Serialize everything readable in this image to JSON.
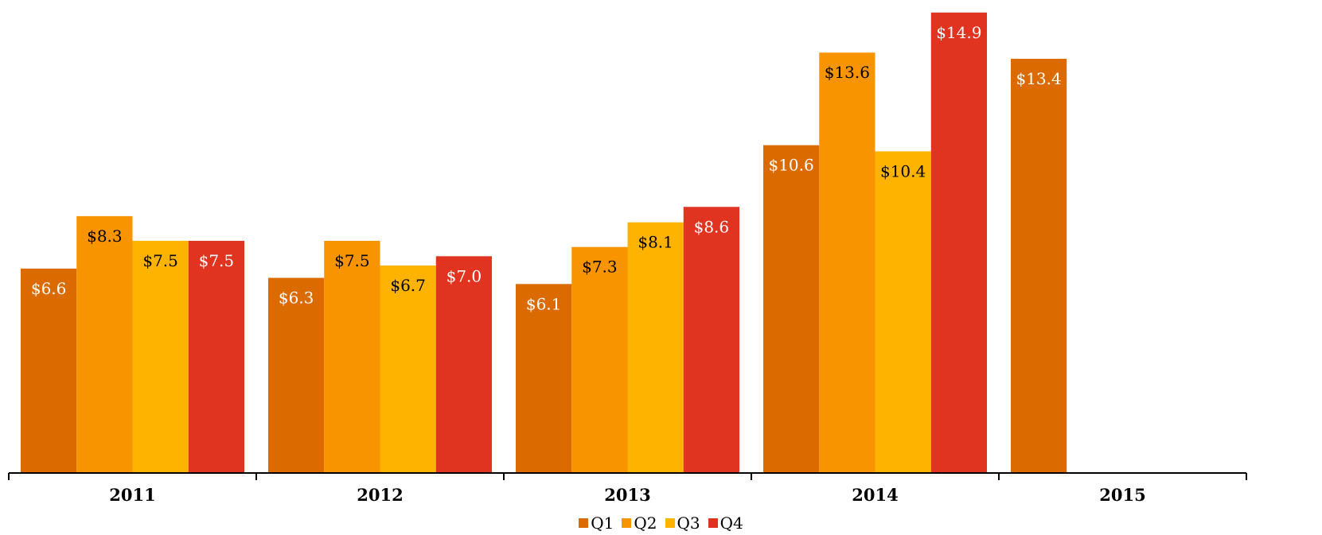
{
  "chart_data": {
    "type": "bar",
    "categories": [
      "2011",
      "2012",
      "2013",
      "2014",
      "2015"
    ],
    "series": [
      {
        "name": "Q1",
        "color": "#DB6B00",
        "values": [
          6.6,
          6.3,
          6.1,
          10.6,
          13.4
        ],
        "labels": [
          "$6.6",
          "$6.3",
          "$6.1",
          "$10.6",
          "$13.4"
        ],
        "label_color": "#FFFFFF"
      },
      {
        "name": "Q2",
        "color": "#F89400",
        "values": [
          8.3,
          7.5,
          7.3,
          13.6,
          null
        ],
        "labels": [
          "$8.3",
          "$7.5",
          "$7.3",
          "$13.6",
          ""
        ],
        "label_color": "#000000"
      },
      {
        "name": "Q3",
        "color": "#FDB300",
        "values": [
          7.5,
          6.7,
          8.1,
          10.4,
          null
        ],
        "labels": [
          "$7.5",
          "$6.7",
          "$8.1",
          "$10.4",
          ""
        ],
        "label_color": "#000000"
      },
      {
        "name": "Q4",
        "color": "#E03320",
        "values": [
          7.5,
          7.0,
          8.6,
          14.9,
          null
        ],
        "labels": [
          "$7.5",
          "$7.0",
          "$8.6",
          "$14.9",
          ""
        ],
        "label_color": "#FFFFFF"
      }
    ],
    "ylim": [
      0,
      15.1
    ],
    "title": "",
    "xlabel": "",
    "ylabel": "",
    "grid": false,
    "legend": "bottom-center"
  }
}
